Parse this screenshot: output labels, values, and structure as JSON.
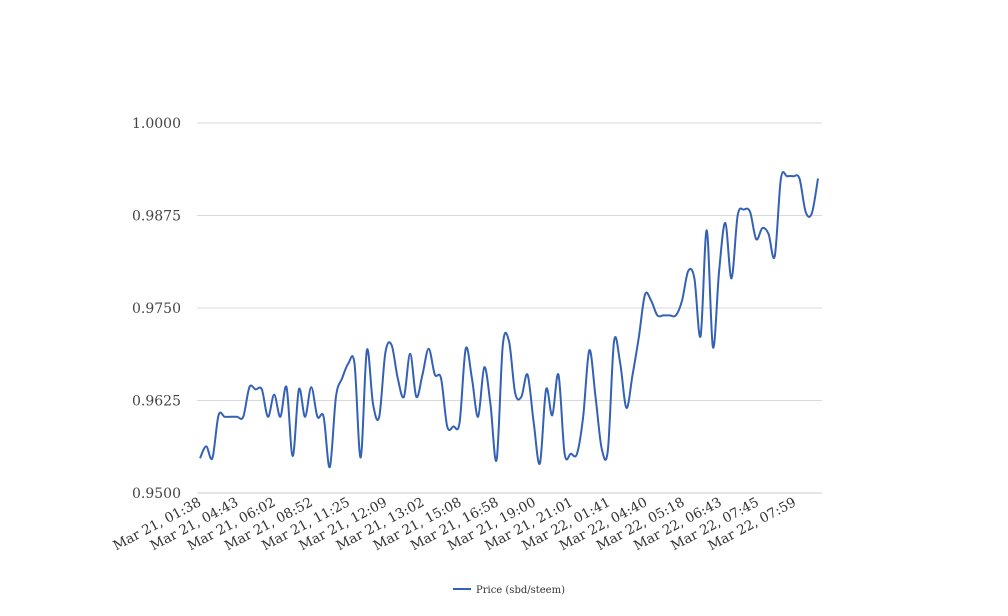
{
  "chart_data": {
    "type": "line",
    "title": "",
    "xlabel": "",
    "ylabel": "",
    "ylim": [
      0.95,
      1.0
    ],
    "yticks": [
      "1.0000",
      "0.9875",
      "0.9750",
      "0.9625",
      "0.9500"
    ],
    "ytick_values": [
      1.0,
      0.9875,
      0.975,
      0.9625,
      0.95
    ],
    "x_tick_labels": [
      "Mar 21, 01:38",
      "Mar 21, 04:43",
      "Mar 21, 06:02",
      "Mar 21, 08:52",
      "Mar 21, 11:25",
      "Mar 21, 12:09",
      "Mar 21, 13:02",
      "Mar 21, 15:08",
      "Mar 21, 16:58",
      "Mar 21, 19:00",
      "Mar 21, 21:01",
      "Mar 22, 01:41",
      "Mar 22, 04:40",
      "Mar 22, 05:18",
      "Mar 22, 06:43",
      "Mar 22, 07:45",
      "Mar 22, 07:59"
    ],
    "grid": true,
    "legend_position": "bottom",
    "series": [
      {
        "name": "Price (sbd/steem)",
        "color": "#3461b5",
        "values": [
          0.9547,
          0.9563,
          0.9547,
          0.9605,
          0.9603,
          0.9603,
          0.9603,
          0.9603,
          0.9643,
          0.964,
          0.964,
          0.9603,
          0.9633,
          0.9603,
          0.9643,
          0.955,
          0.964,
          0.9603,
          0.9643,
          0.9603,
          0.9603,
          0.9535,
          0.963,
          0.9655,
          0.9675,
          0.9675,
          0.9548,
          0.9693,
          0.962,
          0.9603,
          0.969,
          0.97,
          0.9655,
          0.963,
          0.9688,
          0.963,
          0.966,
          0.9695,
          0.966,
          0.9655,
          0.959,
          0.959,
          0.9595,
          0.9695,
          0.9655,
          0.9603,
          0.967,
          0.962,
          0.9545,
          0.97,
          0.9705,
          0.9635,
          0.963,
          0.966,
          0.9595,
          0.954,
          0.964,
          0.9605,
          0.966,
          0.9553,
          0.9553,
          0.9553,
          0.9603,
          0.9693,
          0.963,
          0.956,
          0.9558,
          0.9705,
          0.9675,
          0.9615,
          0.966,
          0.971,
          0.9768,
          0.976,
          0.974,
          0.974,
          0.974,
          0.974,
          0.976,
          0.98,
          0.979,
          0.9712,
          0.9855,
          0.9697,
          0.98,
          0.9865,
          0.979,
          0.9875,
          0.9883,
          0.988,
          0.9843,
          0.9858,
          0.985,
          0.982,
          0.9925,
          0.9928,
          0.9928,
          0.9925,
          0.988,
          0.9878,
          0.9925
        ]
      }
    ]
  }
}
